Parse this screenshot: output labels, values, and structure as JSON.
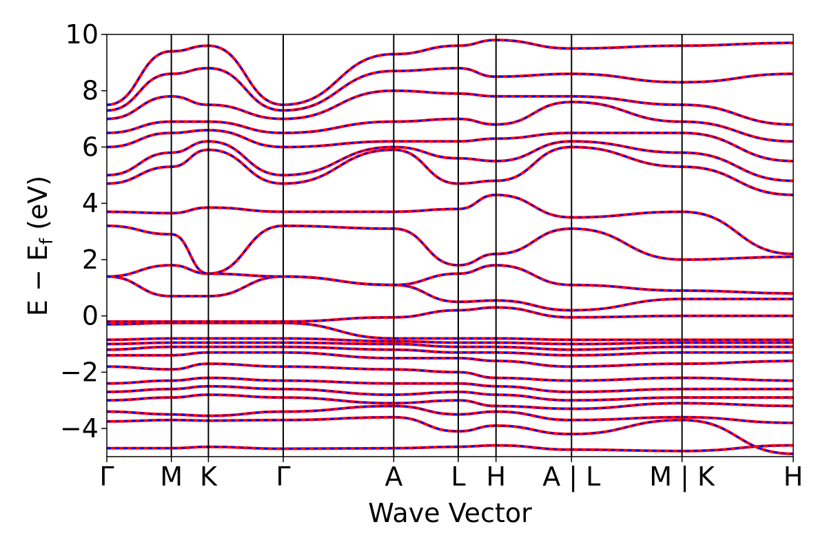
{
  "chart_data": {
    "type": "line",
    "xlabel": "Wave Vector",
    "ylabel": "E − E",
    "ylabel_sub": "f",
    "ylabel_unit": "(eV)",
    "ylim": [
      -5,
      10
    ],
    "yticks": [
      {
        "value": -4,
        "label": "−4"
      },
      {
        "value": -2,
        "label": "−2"
      },
      {
        "value": 0,
        "label": "0"
      },
      {
        "value": 2,
        "label": "2"
      },
      {
        "value": 4,
        "label": "4"
      },
      {
        "value": 6,
        "label": "6"
      },
      {
        "value": 8,
        "label": "8"
      },
      {
        "value": 10,
        "label": "10"
      }
    ],
    "xlim": [
      0,
      10
    ],
    "kpoints": [
      {
        "x": 0.0,
        "label": "Γ"
      },
      {
        "x": 0.94,
        "label": "M"
      },
      {
        "x": 1.48,
        "label": "K"
      },
      {
        "x": 2.57,
        "label": "Γ"
      },
      {
        "x": 4.18,
        "label": "A"
      },
      {
        "x": 5.12,
        "label": "L"
      },
      {
        "x": 5.67,
        "label": "H"
      },
      {
        "x": 6.77,
        "label": "A | L"
      },
      {
        "x": 8.38,
        "label": "M | K"
      },
      {
        "x": 10.0,
        "label": "H"
      }
    ],
    "series_colors": {
      "solid": "#ff0000",
      "dashed": "#0000ff"
    },
    "line_style": "red solid lines overlaid with blue dashed lines",
    "grid": false,
    "bands": {
      "segment_x": [
        0.0,
        0.94,
        1.48,
        2.57,
        4.18,
        5.12,
        5.67,
        6.77,
        8.38,
        10.0
      ],
      "energies": [
        [
          -4.7,
          -4.7,
          -4.65,
          -4.72,
          -4.7,
          -4.65,
          -4.6,
          -4.75,
          -4.8,
          -4.6
        ],
        [
          -3.75,
          -3.7,
          -3.72,
          -3.7,
          -3.6,
          -4.1,
          -3.9,
          -4.2,
          -3.7,
          -4.9
        ],
        [
          -3.4,
          -3.5,
          -3.55,
          -3.4,
          -3.2,
          -3.5,
          -3.4,
          -3.7,
          -3.6,
          -3.8
        ],
        [
          -3.0,
          -2.9,
          -2.8,
          -2.9,
          -3.1,
          -3.0,
          -3.2,
          -3.3,
          -3.1,
          -3.2
        ],
        [
          -2.7,
          -2.6,
          -2.5,
          -2.6,
          -2.8,
          -2.7,
          -2.8,
          -3.0,
          -2.9,
          -2.9
        ],
        [
          -2.4,
          -2.3,
          -2.2,
          -2.3,
          -2.4,
          -2.4,
          -2.5,
          -2.7,
          -2.6,
          -2.6
        ],
        [
          -1.8,
          -1.9,
          -1.7,
          -1.8,
          -1.9,
          -2.0,
          -2.2,
          -2.3,
          -2.2,
          -2.3
        ],
        [
          -1.4,
          -1.4,
          -1.3,
          -1.3,
          -1.5,
          -1.5,
          -1.6,
          -1.8,
          -1.7,
          -1.6
        ],
        [
          -1.2,
          -1.1,
          -1.1,
          -1.1,
          -1.2,
          -1.3,
          -1.3,
          -1.4,
          -1.3,
          -1.3
        ],
        [
          -1.0,
          -0.95,
          -0.95,
          -0.95,
          -1.0,
          -1.1,
          -1.1,
          -1.2,
          -1.1,
          -1.1
        ],
        [
          -0.85,
          -0.8,
          -0.8,
          -0.8,
          -0.9,
          -0.95,
          -0.95,
          -1.0,
          -0.95,
          -0.95
        ],
        [
          -0.3,
          -0.25,
          -0.25,
          -0.25,
          -0.8,
          -0.8,
          -0.8,
          -0.85,
          -0.85,
          -0.85
        ],
        [
          -0.2,
          -0.2,
          -0.2,
          -0.2,
          -0.05,
          0.2,
          0.3,
          -0.05,
          0.0,
          0.0
        ],
        [
          1.4,
          0.7,
          0.7,
          1.4,
          1.1,
          0.5,
          0.55,
          0.2,
          0.6,
          0.6
        ],
        [
          1.4,
          1.8,
          1.5,
          1.4,
          1.1,
          1.5,
          1.8,
          1.1,
          0.9,
          0.8
        ],
        [
          3.2,
          2.9,
          1.5,
          3.2,
          3.1,
          1.8,
          2.2,
          3.1,
          2.0,
          2.1
        ],
        [
          3.7,
          3.65,
          3.85,
          3.7,
          3.7,
          3.8,
          4.3,
          3.5,
          3.7,
          2.2
        ],
        [
          4.7,
          5.3,
          5.9,
          4.7,
          5.9,
          4.7,
          4.8,
          6.0,
          5.3,
          4.3
        ],
        [
          5.0,
          5.8,
          6.2,
          5.0,
          6.0,
          5.6,
          5.5,
          6.2,
          5.8,
          4.8
        ],
        [
          6.0,
          6.5,
          6.6,
          6.0,
          6.2,
          6.2,
          6.3,
          6.5,
          6.5,
          5.5
        ],
        [
          6.5,
          6.9,
          6.9,
          6.5,
          6.9,
          7.0,
          6.8,
          7.6,
          6.9,
          6.2
        ],
        [
          7.0,
          7.8,
          7.5,
          7.0,
          8.0,
          7.9,
          7.8,
          7.8,
          7.5,
          6.8
        ],
        [
          7.3,
          8.6,
          8.8,
          7.3,
          8.7,
          8.8,
          8.5,
          8.6,
          8.3,
          8.6
        ],
        [
          7.5,
          9.4,
          9.6,
          7.5,
          9.3,
          9.6,
          9.8,
          9.5,
          9.6,
          9.7
        ]
      ]
    }
  }
}
